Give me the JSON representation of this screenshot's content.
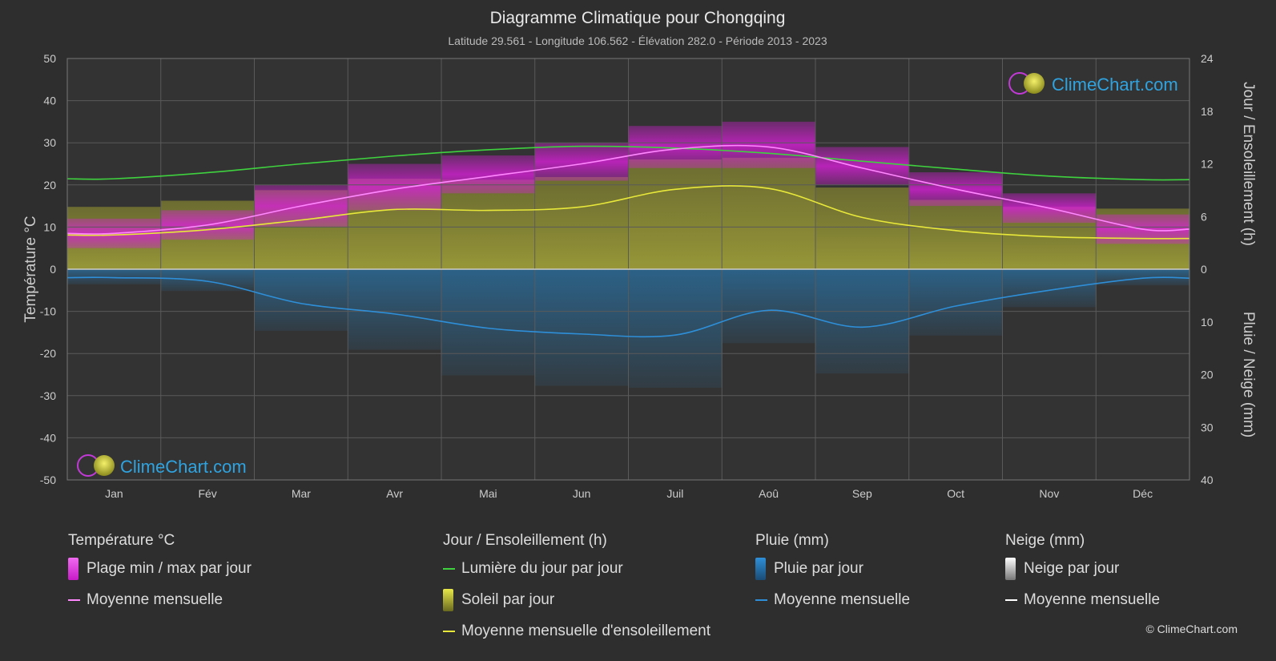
{
  "title": "Diagramme Climatique pour Chongqing",
  "subtitle": "Latitude 29.561 - Longitude 106.562 - Élévation 282.0 - Période 2013 - 2023",
  "watermark": "ClimeChart.com",
  "copyright": "© ClimeChart.com",
  "colors": {
    "background": "#2e2e2e",
    "temp_band": "#d81fd8",
    "temp_mean": "#ff88ff",
    "daylight": "#3fd23f",
    "sunshine_band": "#b8b83a",
    "sunshine_mean": "#e8e83a",
    "rain_bar": "#2a6d9c",
    "rain_mean": "#2e8fd8",
    "snow_mean": "#ffffff",
    "grid": "#5a5a5a"
  },
  "legend": {
    "temperature": {
      "heading": "Température °C",
      "items": [
        {
          "label": "Plage min / max par jour",
          "kind": "box",
          "color": "#d81fd8"
        },
        {
          "label": "Moyenne mensuelle",
          "kind": "line",
          "color": "#ff88ff"
        }
      ]
    },
    "sun": {
      "heading": "Jour / Ensoleillement (h)",
      "items": [
        {
          "label": "Lumière du jour par jour",
          "kind": "line",
          "color": "#3fd23f"
        },
        {
          "label": "Soleil par jour",
          "kind": "box",
          "color": "#c8c83a"
        },
        {
          "label": "Moyenne mensuelle d'ensoleillement",
          "kind": "line",
          "color": "#e8e83a"
        }
      ]
    },
    "rain": {
      "heading": "Pluie (mm)",
      "items": [
        {
          "label": "Pluie par jour",
          "kind": "box",
          "color": "#2e8fd8"
        },
        {
          "label": "Moyenne mensuelle",
          "kind": "line",
          "color": "#2e8fd8"
        }
      ]
    },
    "snow": {
      "heading": "Neige (mm)",
      "items": [
        {
          "label": "Neige par jour",
          "kind": "box",
          "color": "#dddddd"
        },
        {
          "label": "Moyenne mensuelle",
          "kind": "line",
          "color": "#ffffff"
        }
      ]
    }
  },
  "chart_data": {
    "type": "line",
    "title": "Diagramme Climatique pour Chongqing",
    "subtitle": "Latitude 29.561 - Longitude 106.562 - Élévation 282.0 - Période 2013 - 2023",
    "categories": [
      "Jan",
      "Fév",
      "Mar",
      "Avr",
      "Mai",
      "Jun",
      "Juil",
      "Aoû",
      "Sep",
      "Oct",
      "Nov",
      "Déc"
    ],
    "y_left": {
      "label": "Température °C",
      "range": [
        -50,
        50
      ],
      "ticks": [
        50,
        40,
        30,
        20,
        10,
        0,
        -10,
        -20,
        -30,
        -40,
        -50
      ]
    },
    "y_right_top": {
      "label": "Jour / Ensoleillement (h)",
      "range": [
        0,
        24
      ],
      "ticks": [
        24,
        18,
        12,
        6,
        0
      ]
    },
    "y_right_bottom": {
      "label": "Pluie / Neige (mm)",
      "range": [
        0,
        40
      ],
      "ticks": [
        0,
        10,
        20,
        30,
        40
      ]
    },
    "grid": true,
    "series": [
      {
        "name": "Moyenne mensuelle",
        "group": "temperature",
        "values": [
          8.5,
          10.5,
          15.0,
          19.0,
          22.0,
          25.0,
          28.5,
          29.0,
          24.0,
          19.0,
          14.5,
          9.5
        ]
      },
      {
        "name": "Plage min / max par jour",
        "group": "temperature",
        "min": [
          5,
          7,
          10,
          14,
          18,
          21,
          24,
          24,
          20,
          15,
          11,
          6
        ],
        "max": [
          12,
          14,
          20,
          25,
          27,
          30,
          34,
          35,
          29,
          23,
          18,
          13
        ]
      },
      {
        "name": "Lumière du jour par jour",
        "group": "sun",
        "values": [
          10.3,
          11.0,
          12.0,
          12.9,
          13.6,
          14.0,
          13.8,
          13.2,
          12.3,
          11.4,
          10.6,
          10.2
        ]
      },
      {
        "name": "Soleil par jour",
        "group": "sun",
        "values": [
          3.6,
          4.3,
          5.5,
          6.8,
          6.7,
          7.0,
          9.0,
          9.2,
          5.8,
          4.4,
          3.6,
          3.4
        ]
      },
      {
        "name": "Moyenne mensuelle d'ensoleillement",
        "group": "sun",
        "values": [
          3.9,
          4.5,
          5.6,
          6.8,
          6.7,
          7.1,
          9.1,
          9.2,
          5.9,
          4.4,
          3.7,
          3.5
        ]
      },
      {
        "name": "Pluie par jour",
        "group": "rain",
        "values": [
          1.6,
          2.3,
          6.5,
          8.5,
          11.2,
          12.3,
          12.5,
          7.8,
          11.0,
          7.0,
          4.0,
          1.7
        ]
      },
      {
        "name": "Moyenne mensuelle",
        "group": "rain",
        "values": [
          1.6,
          2.3,
          6.5,
          8.5,
          11.2,
          12.3,
          12.5,
          7.8,
          11.0,
          7.0,
          4.0,
          1.7
        ]
      },
      {
        "name": "Moyenne mensuelle",
        "group": "snow",
        "values": [
          0,
          0,
          0,
          0,
          0,
          0,
          0,
          0,
          0,
          0,
          0,
          0
        ]
      }
    ]
  }
}
